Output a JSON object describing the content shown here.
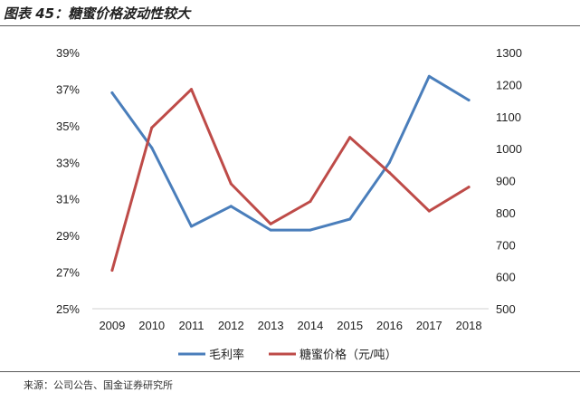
{
  "header": {
    "title": "图表 45：糖蜜价格波动性较大"
  },
  "footer": {
    "source": "来源：公司公告、国金证券研究所"
  },
  "colors": {
    "series_1": "#4a7ebb",
    "series_2": "#be4b48",
    "text": "#222222"
  },
  "chart_data": {
    "type": "line",
    "title": "",
    "xlabel": "",
    "ylabel": "",
    "x": [
      "2009",
      "2010",
      "2011",
      "2012",
      "2013",
      "2014",
      "2015",
      "2016",
      "2017",
      "2018"
    ],
    "ylim_left": [
      25,
      39
    ],
    "yticks_left": [
      "25%",
      "27%",
      "29%",
      "31%",
      "33%",
      "35%",
      "37%",
      "39%"
    ],
    "ylim_right": [
      500,
      1300
    ],
    "yticks_right": [
      "500",
      "600",
      "700",
      "800",
      "900",
      "1000",
      "1100",
      "1200",
      "1300"
    ],
    "grid": false,
    "legend": "bottom",
    "series": [
      {
        "name": "毛利率",
        "axis": "left",
        "unit": "%",
        "values": [
          36.8,
          33.8,
          29.5,
          30.6,
          29.3,
          29.3,
          29.9,
          33.0,
          37.7,
          36.4
        ]
      },
      {
        "name": "糖蜜价格（元/吨）",
        "axis": "right",
        "values": [
          620,
          1065,
          1185,
          890,
          765,
          835,
          1035,
          925,
          805,
          880
        ]
      }
    ]
  }
}
